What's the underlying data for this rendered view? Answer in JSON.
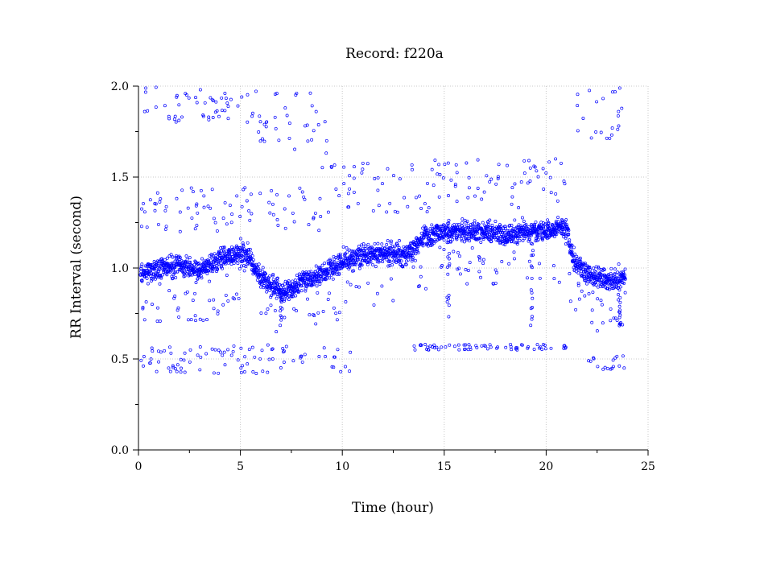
{
  "chart_data": {
    "type": "scatter",
    "title": "Record:  f220a",
    "xlabel": "Time (hour)",
    "ylabel": "RR Interval (second)",
    "xlim": [
      0,
      25
    ],
    "ylim": [
      0,
      2
    ],
    "xticks": [
      0,
      5,
      10,
      15,
      20,
      25
    ],
    "yticks": [
      0.0,
      0.5,
      1.0,
      1.5,
      2.0
    ],
    "xtick_labels": [
      "0",
      "5",
      "10",
      "15",
      "20",
      "25"
    ],
    "ytick_labels": [
      "0.0",
      "0.5",
      "1.0",
      "1.5",
      "2.0"
    ],
    "x_minor_ticks": [
      2.5,
      7.5,
      12.5,
      17.5,
      22.5
    ],
    "y_minor_ticks": [
      0.25,
      0.75,
      1.25,
      1.75
    ],
    "grid": true,
    "marker": "open-circle",
    "point_color": "#0000ff",
    "x_range_of_data": [
      0.1,
      23.9
    ],
    "trend": {
      "x": [
        0.1,
        1,
        2,
        3,
        4,
        5,
        5.5,
        6,
        6.5,
        7,
        7.5,
        8,
        9,
        10,
        11,
        12,
        13,
        13.5,
        14,
        15,
        16,
        17,
        18,
        19,
        20,
        20.5,
        21,
        21.3,
        22,
        23,
        23.9
      ],
      "y": [
        0.97,
        1.0,
        1.02,
        0.98,
        1.05,
        1.08,
        1.05,
        0.95,
        0.9,
        0.87,
        0.88,
        0.92,
        0.97,
        1.03,
        1.07,
        1.08,
        1.07,
        1.1,
        1.17,
        1.2,
        1.2,
        1.2,
        1.19,
        1.2,
        1.2,
        1.22,
        1.22,
        1.05,
        0.97,
        0.93,
        0.95
      ]
    },
    "outlier_bands": [
      {
        "name": "high",
        "x": [
          0.1,
          6.0
        ],
        "y": [
          1.8,
          2.0
        ]
      },
      {
        "name": "high",
        "x": [
          5.8,
          9.5
        ],
        "y": [
          1.62,
          1.98
        ]
      },
      {
        "name": "high",
        "x": [
          21.5,
          23.9
        ],
        "y": [
          1.7,
          2.0
        ]
      },
      {
        "name": "upper",
        "x": [
          0.1,
          9.0
        ],
        "y": [
          1.2,
          1.45
        ]
      },
      {
        "name": "upper",
        "x": [
          9.0,
          21.0
        ],
        "y": [
          1.3,
          1.6
        ]
      },
      {
        "name": "low",
        "x": [
          0.1,
          10.5
        ],
        "y": [
          0.42,
          0.58
        ]
      },
      {
        "name": "low",
        "x": [
          13.5,
          21.0
        ],
        "y": [
          0.55,
          0.58
        ]
      },
      {
        "name": "low",
        "x": [
          22.0,
          23.9
        ],
        "y": [
          0.44,
          0.52
        ]
      }
    ],
    "dips": [
      {
        "x": 15.2,
        "y_min": 0.65
      },
      {
        "x": 19.3,
        "y_min": 0.65
      },
      {
        "x": 23.6,
        "y_min": 0.68
      },
      {
        "x": 7.0,
        "y_min": 0.68
      }
    ]
  }
}
